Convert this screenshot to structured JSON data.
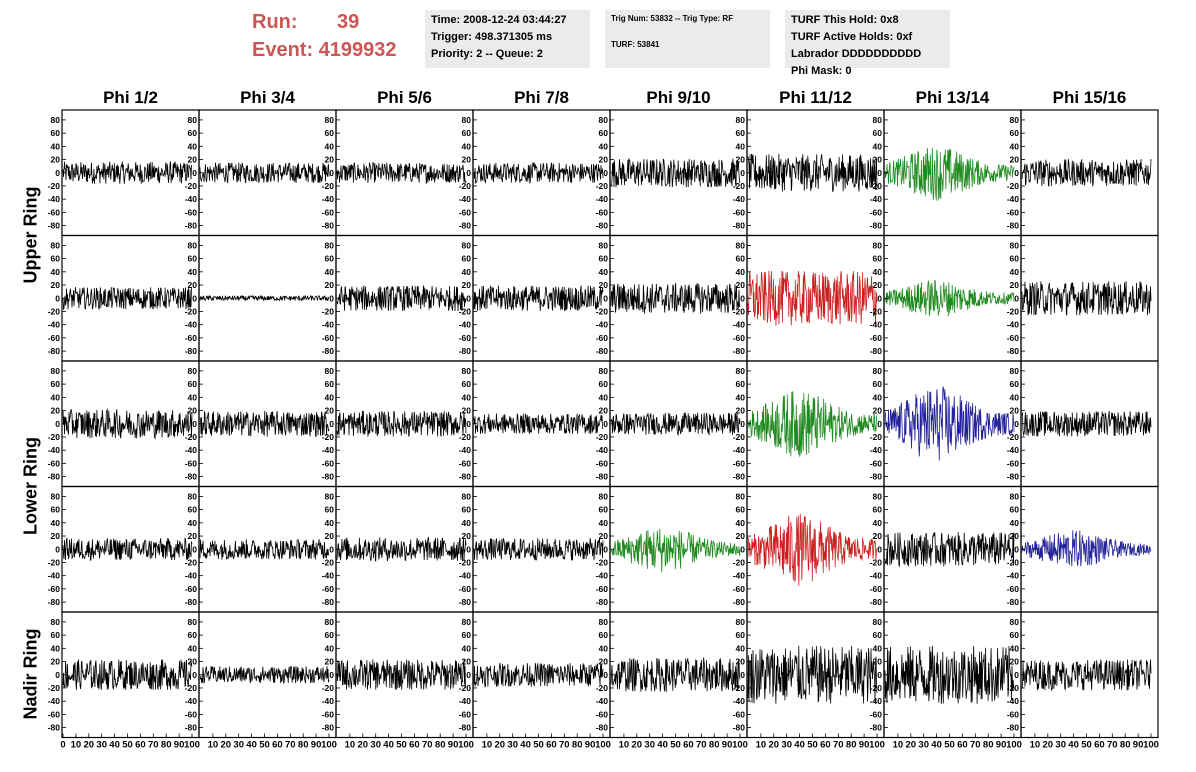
{
  "header": {
    "run_label": "Run:",
    "run_value": "39",
    "event_label": "Event:",
    "event_value": "4199932",
    "time_line": "Time: 2008-12-24 03:44:27",
    "trigger_line": "Trigger: 498.371305 ms",
    "priority_line": "Priority: 2 -- Queue: 2",
    "trig_line": "Trig Num: 53832 -- Trig Type: RF",
    "turf_line": "TURF: 53841",
    "turf_hold_line": "TURF This Hold: 0x8",
    "turf_active_line": "TURF Active Holds: 0xf",
    "labrador_line": "Labrador DDDDDDDDDD",
    "phimask_line": "Phi Mask: 0"
  },
  "columns": [
    "Phi 1/2",
    "Phi 3/4",
    "Phi 5/6",
    "Phi 7/8",
    "Phi 9/10",
    "Phi 11/12",
    "Phi 13/14",
    "Phi 15/16"
  ],
  "ring_labels": {
    "upper": "Upper Ring",
    "lower": "Lower Ring",
    "nadir": "Nadir Ring"
  },
  "colors": {
    "black": "#000000",
    "green": "#1f8a1f",
    "red": "#cc2020",
    "blue": "#22229a",
    "run_text": "#cc5555",
    "info_bg": "#ebebeb"
  },
  "chart_data": {
    "type": "line",
    "description_units": "waveform amplitude vs sample time",
    "ylim": [
      -95,
      95
    ],
    "xlim": [
      0,
      100
    ],
    "yticks": [
      -80,
      -60,
      -40,
      -20,
      0,
      20,
      40,
      60,
      80
    ],
    "xtick_labels_first": [
      "0",
      "10",
      "20",
      "30",
      "40",
      "50",
      "60",
      "70",
      "80",
      "90",
      "100"
    ],
    "xtick_labels_other": [
      "10",
      "20",
      "30",
      "40",
      "50",
      "60",
      "70",
      "80",
      "90",
      "100"
    ],
    "rows": [
      {
        "ring": "upper",
        "cells": [
          {
            "color": "black",
            "amp": 13
          },
          {
            "color": "black",
            "amp": 12
          },
          {
            "color": "black",
            "amp": 12
          },
          {
            "color": "black",
            "amp": 12
          },
          {
            "color": "black",
            "amp": 17
          },
          {
            "color": "black",
            "amp": 22
          },
          {
            "color": "green",
            "amp": 26,
            "env": true
          },
          {
            "color": "black",
            "amp": 16
          }
        ]
      },
      {
        "ring": "upper",
        "cells": [
          {
            "color": "black",
            "amp": 13
          },
          {
            "color": "black",
            "amp": 3
          },
          {
            "color": "black",
            "amp": 15
          },
          {
            "color": "black",
            "amp": 15
          },
          {
            "color": "black",
            "amp": 18
          },
          {
            "color": "red",
            "amp": 32
          },
          {
            "color": "green",
            "amp": 18,
            "env": true
          },
          {
            "color": "black",
            "amp": 20
          }
        ]
      },
      {
        "ring": "lower",
        "cells": [
          {
            "color": "black",
            "amp": 17
          },
          {
            "color": "black",
            "amp": 15
          },
          {
            "color": "black",
            "amp": 15
          },
          {
            "color": "black",
            "amp": 12
          },
          {
            "color": "black",
            "amp": 13
          },
          {
            "color": "green",
            "amp": 32,
            "env": true
          },
          {
            "color": "blue",
            "amp": 36,
            "env": true
          },
          {
            "color": "black",
            "amp": 15
          }
        ]
      },
      {
        "ring": "lower",
        "cells": [
          {
            "color": "black",
            "amp": 13
          },
          {
            "color": "black",
            "amp": 12
          },
          {
            "color": "black",
            "amp": 14
          },
          {
            "color": "black",
            "amp": 13
          },
          {
            "color": "green",
            "amp": 22,
            "env": true
          },
          {
            "color": "red",
            "amp": 34,
            "env": true
          },
          {
            "color": "black",
            "amp": 20
          },
          {
            "color": "blue",
            "amp": 18,
            "env": true
          }
        ]
      },
      {
        "ring": "nadir",
        "cells": [
          {
            "color": "black",
            "amp": 18
          },
          {
            "color": "black",
            "amp": 10
          },
          {
            "color": "black",
            "amp": 18
          },
          {
            "color": "black",
            "amp": 14
          },
          {
            "color": "black",
            "amp": 20
          },
          {
            "color": "black",
            "amp": 34
          },
          {
            "color": "black",
            "amp": 34
          },
          {
            "color": "black",
            "amp": 18
          }
        ]
      }
    ]
  }
}
